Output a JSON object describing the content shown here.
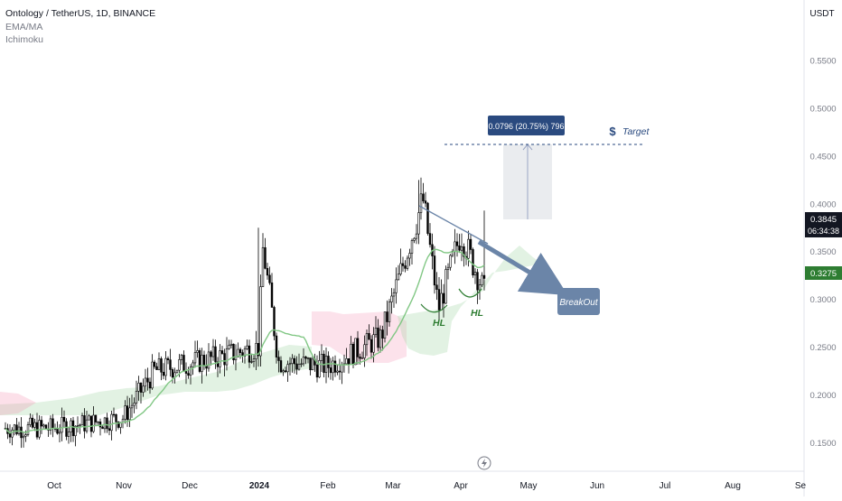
{
  "header": {
    "title": "Ontology / TetherUS, 1D, BINANCE",
    "indicators": [
      "EMA/MA",
      "Ichimoku"
    ]
  },
  "price_axis": {
    "currency": "USDT",
    "ticks": [
      "0.5500",
      "0.5000",
      "0.4500",
      "0.4000",
      "0.3500",
      "0.3000",
      "0.2500",
      "0.2000",
      "0.1500"
    ],
    "last_price_label": "0.3845",
    "countdown_label": "06:34:38",
    "ma_label": "0.3275"
  },
  "time_axis": {
    "labels": [
      "Oct",
      "Nov",
      "Dec",
      "2024",
      "Feb",
      "Mar",
      "Apr",
      "May",
      "Jun",
      "Jul",
      "Aug",
      "Se"
    ]
  },
  "annotations": {
    "measure_label": "0.0796 (20.75%) 796",
    "target_label": "Target",
    "breakout_label": "BreakOut",
    "hl_labels": [
      "HL",
      "HL"
    ]
  },
  "colors": {
    "up_candle": "#ffffff",
    "down_candle": "#000000",
    "ma_line": "#81c784",
    "cloud_bull": "#a5d6a7",
    "cloud_bear": "#f48fb1",
    "measure_box": "#2a4a7f",
    "breakout_arrow": "#6b85a8",
    "ma_badge": "#2e7d32",
    "price_badge": "#131722"
  },
  "chart_data": {
    "type": "candlestick",
    "symbol": "Ontology / TetherUS",
    "timeframe": "1D",
    "exchange": "BINANCE",
    "ylim": [
      0.13,
      0.59
    ],
    "key_points": [
      {
        "date": "2023-10-01",
        "close": 0.165
      },
      {
        "date": "2023-11-01",
        "close": 0.176
      },
      {
        "date": "2023-11-15",
        "close": 0.225
      },
      {
        "date": "2023-12-15",
        "close": 0.24
      },
      {
        "date": "2024-01-01",
        "close": 0.25
      },
      {
        "date": "2024-01-03",
        "close": 0.355
      },
      {
        "date": "2024-01-10",
        "close": 0.235
      },
      {
        "date": "2024-02-01",
        "close": 0.23
      },
      {
        "date": "2024-02-25",
        "close": 0.26
      },
      {
        "date": "2024-03-15",
        "close": 0.405
      },
      {
        "date": "2024-03-22",
        "close": 0.29
      },
      {
        "date": "2024-04-01",
        "close": 0.37
      },
      {
        "date": "2024-04-12",
        "close": 0.305
      },
      {
        "date": "2024-04-22",
        "close": 0.3845
      }
    ],
    "ma_value": 0.3275,
    "measure": {
      "from": 0.3845,
      "to": 0.4641,
      "change": 0.0796,
      "change_pct": 20.75
    }
  }
}
